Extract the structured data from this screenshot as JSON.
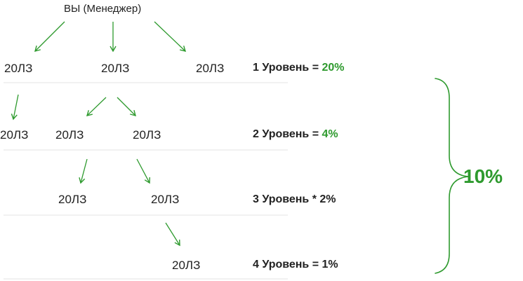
{
  "root": "ВЫ (Менеджер)",
  "node_label": "20ЛЗ",
  "levels": [
    {
      "label": "1 Уровень = ",
      "value": "20%"
    },
    {
      "label": "2 Уровень = ",
      "value": "4%"
    },
    {
      "label": "3 Уровень * 2%",
      "value": ""
    },
    {
      "label": "4 Уровень = 1%",
      "value": ""
    }
  ],
  "total": "10%",
  "colors": {
    "accent": "#2e9a2e",
    "divider": "#e3e3e3",
    "text": "#222222"
  }
}
